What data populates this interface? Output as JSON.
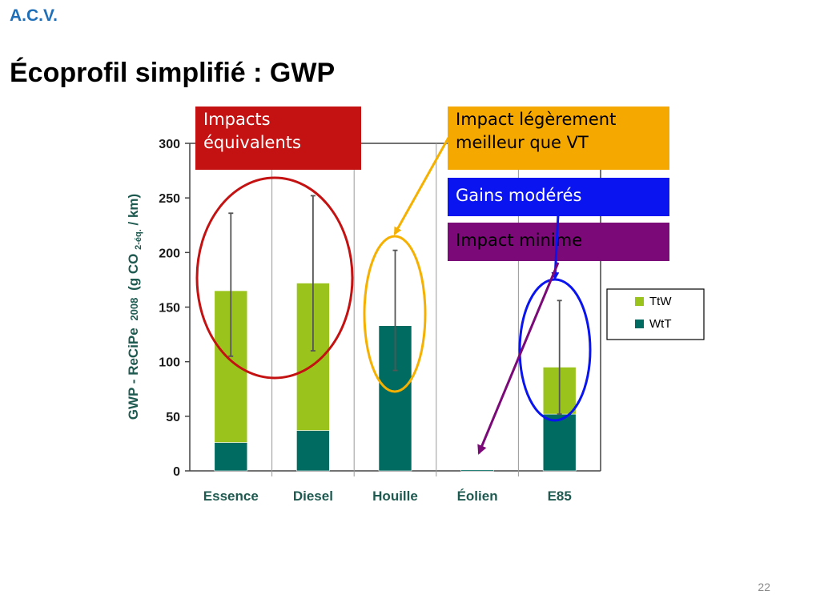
{
  "header": {
    "label": "A.C.V."
  },
  "slide": {
    "title": "Écoprofil simplifié : GWP",
    "number": "22"
  },
  "chart_data": {
    "type": "bar",
    "stacked": true,
    "categories": [
      "Essence",
      "Diesel",
      "Houille",
      "Éolien",
      "E85"
    ],
    "series": [
      {
        "name": "WtT",
        "color": "#006b60",
        "values": [
          26,
          37,
          133,
          1,
          52
        ]
      },
      {
        "name": "TtW",
        "color": "#9ac31c",
        "values": [
          139,
          135,
          0,
          0,
          43
        ]
      }
    ],
    "error_bars": [
      {
        "low": 105,
        "high": 236
      },
      {
        "low": 110,
        "high": 252
      },
      {
        "low": 92,
        "high": 202
      },
      null,
      {
        "low": 52,
        "high": 156
      }
    ],
    "ylim": [
      0,
      300
    ],
    "yticks": [
      0,
      50,
      100,
      150,
      200,
      250,
      300
    ],
    "ylabel": {
      "main": "GWP - ReCiPe",
      "year": "2008",
      "paren_open": "(g CO",
      "sub": "2-éq.",
      "paren_close": " / km)"
    },
    "legend": {
      "placement": "right"
    }
  },
  "callouts": {
    "equivalent": {
      "text_line1": "Impacts",
      "text_line2": "équivalents",
      "color": "#c41212",
      "text_color": "#ffffff"
    },
    "slightly_better": {
      "text_line1": "Impact légèrement",
      "text_line2": "meilleur que VT",
      "color": "#f5a800",
      "text_color": "#000000"
    },
    "moderate": {
      "text": "Gains modérés",
      "color": "#0a14f0",
      "text_color": "#ffffff"
    },
    "minimal": {
      "text": "Impact minime",
      "color": "#7b0a78",
      "text_color": "#000000"
    }
  },
  "annotation_colors": {
    "red": "#c41212",
    "orange": "#f5b000",
    "blue": "#0a14f0",
    "purple": "#7b0a78"
  }
}
